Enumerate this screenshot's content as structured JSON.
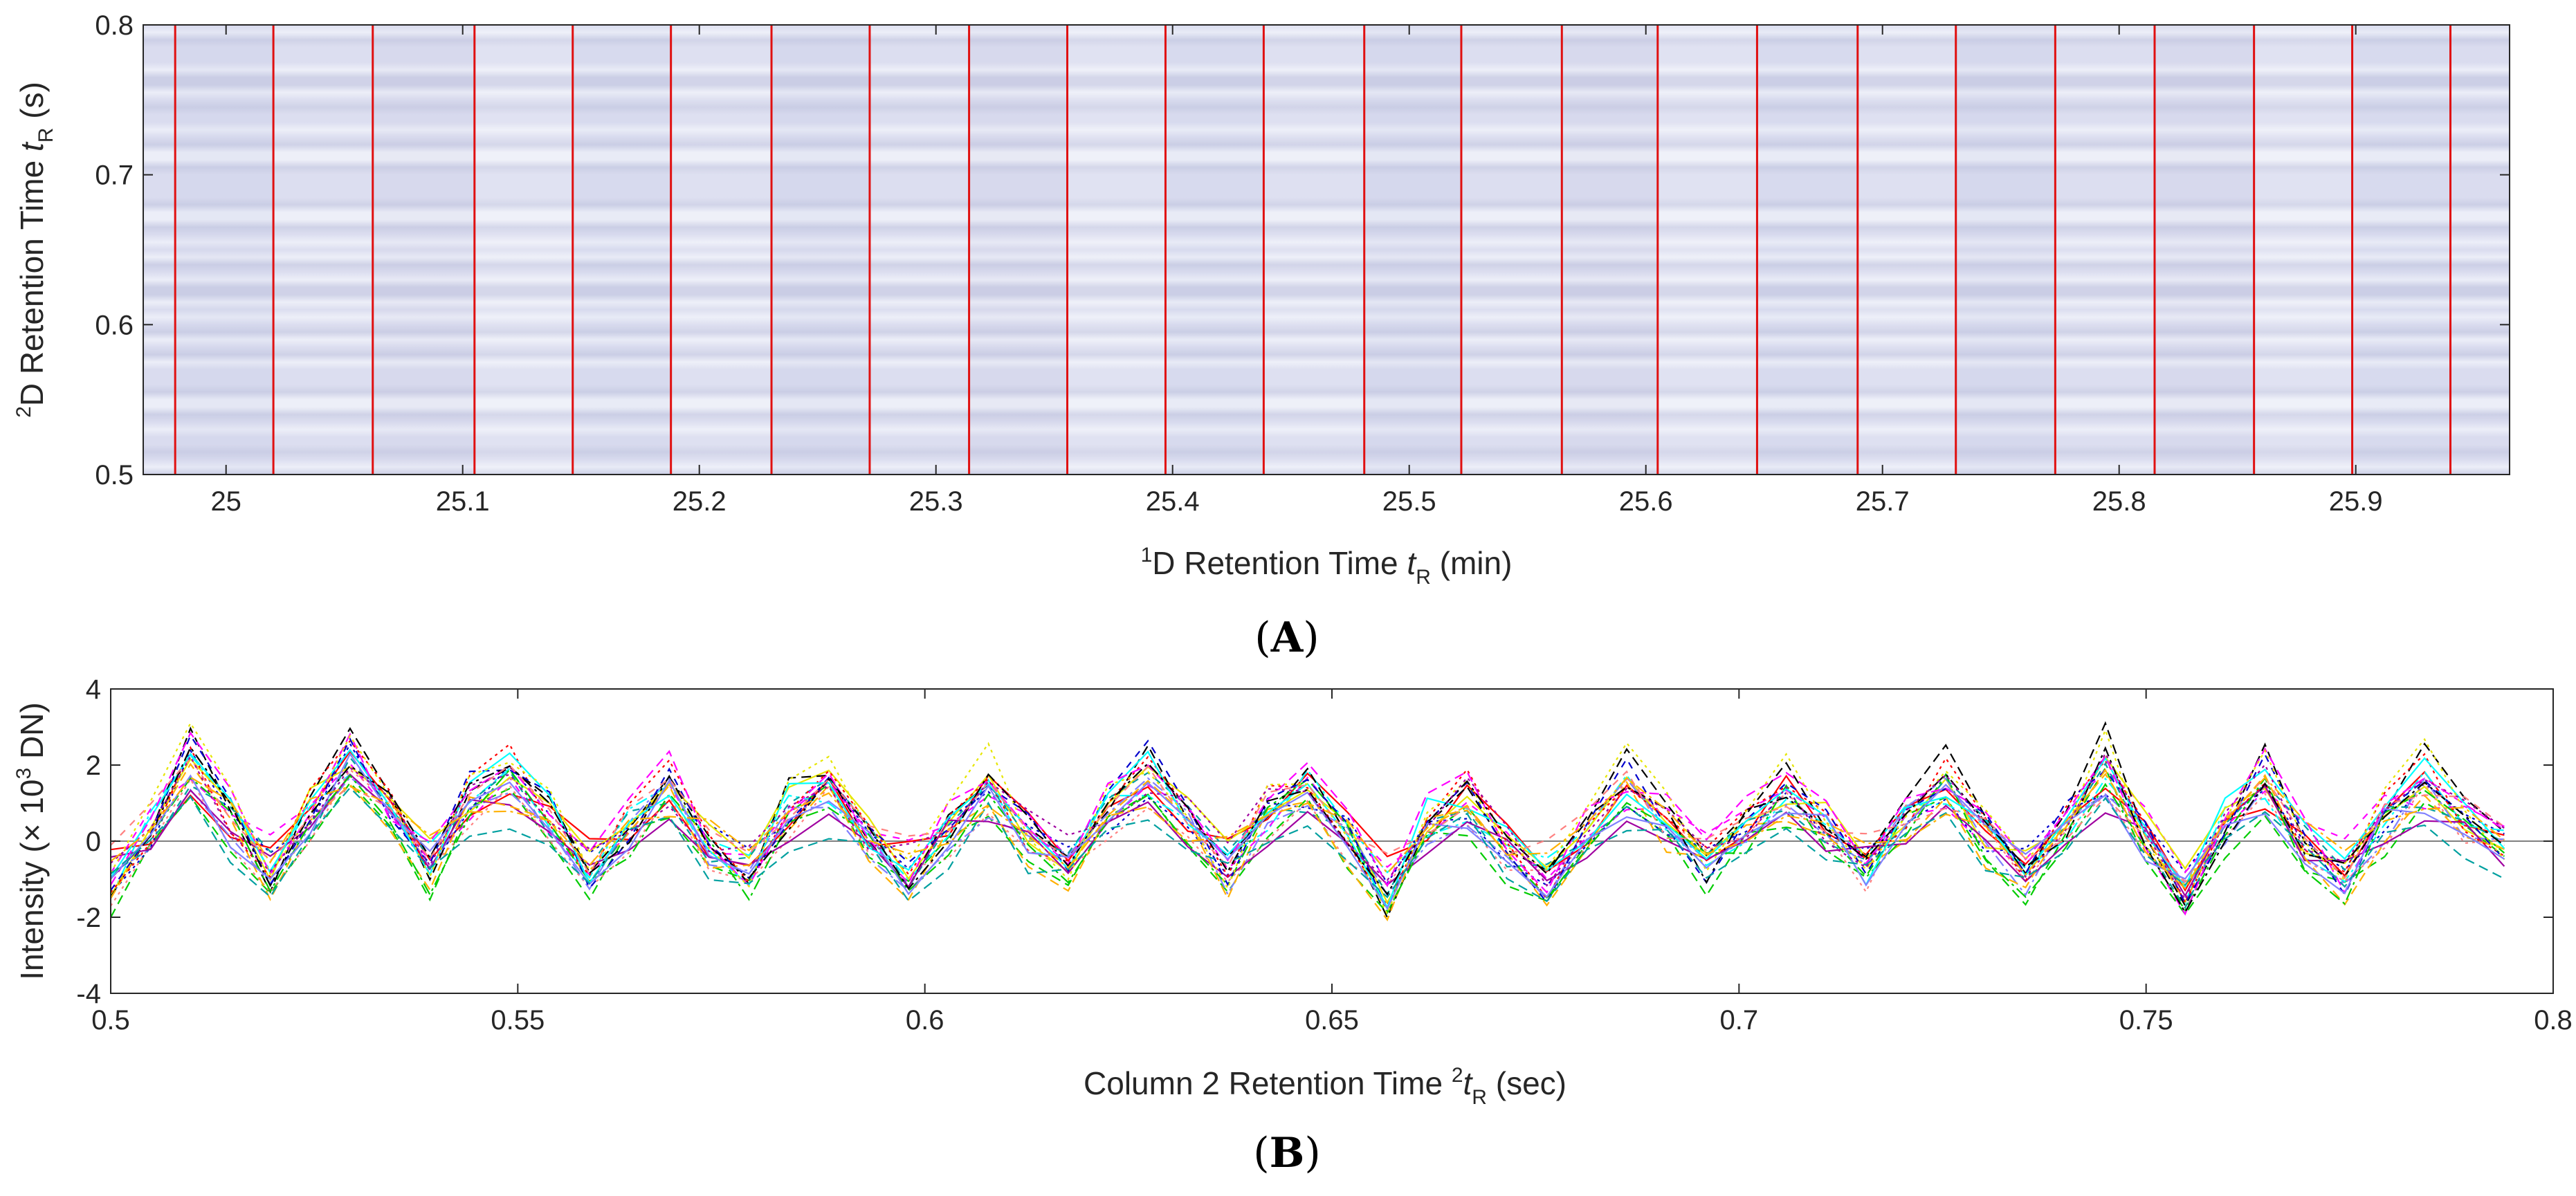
{
  "panel_labels": {
    "a_open": "(",
    "a": "A",
    "a_close": ")",
    "b_open": "(",
    "b": "B",
    "b_close": ")"
  },
  "colors": {
    "heatmap_bg": "#dadcef",
    "heatmap_band_light": "#eceef8",
    "heatmap_band_dark": "#cccfe6",
    "cut_line": "#e01010",
    "axis": "#262626",
    "trace_palette": [
      "#ff0000",
      "#00cc00",
      "#0000cc",
      "#00ffff",
      "#ff00ff",
      "#e6e600",
      "#000000",
      "#ff8080",
      "#8080ff",
      "#00a0a0",
      "#a000a0",
      "#ffb000"
    ]
  },
  "chart_data": [
    {
      "id": "A",
      "type": "heatmap",
      "title": "",
      "xlabel_parts": {
        "sup": "1",
        "main": "D Retention Time ",
        "var": "t",
        "sub": "R",
        "unit": " (min)"
      },
      "ylabel_parts": {
        "sup": "2",
        "main": "D Retention Time ",
        "var": "t",
        "sub": "R",
        "unit": " (s)"
      },
      "xlim": [
        24.965,
        25.965
      ],
      "ylim": [
        0.5,
        0.8
      ],
      "xticks": [
        25,
        25.1,
        25.2,
        25.3,
        25.4,
        25.5,
        25.6,
        25.7,
        25.8,
        25.9
      ],
      "xtick_labels": [
        "25",
        "25.1",
        "25.2",
        "25.3",
        "25.4",
        "25.5",
        "25.6",
        "25.7",
        "25.8",
        "25.9"
      ],
      "yticks": [
        0.5,
        0.6,
        0.7,
        0.8
      ],
      "ytick_labels": [
        "0.5",
        "0.6",
        "0.7",
        "0.8"
      ],
      "modulation_cut_x": [
        24.9785,
        25.02,
        25.062,
        25.105,
        25.1465,
        25.188,
        25.2305,
        25.272,
        25.314,
        25.3555,
        25.397,
        25.4385,
        25.481,
        25.522,
        25.5645,
        25.605,
        25.647,
        25.6895,
        25.731,
        25.773,
        25.815,
        25.857,
        25.8985,
        25.94
      ]
    },
    {
      "id": "B",
      "type": "line",
      "title": "",
      "xlabel_parts": {
        "main": "Column 2 Retention Time ",
        "sup": "2",
        "var": "t",
        "sub": "R",
        "unit": " (sec)"
      },
      "ylabel_parts": {
        "main": "Intensity (× 10",
        "sup": "3",
        "unit": " DN)"
      },
      "xlim": [
        0.5,
        0.8
      ],
      "ylim": [
        -4,
        4
      ],
      "xticks": [
        0.5,
        0.55,
        0.6,
        0.65,
        0.7,
        0.75,
        0.8
      ],
      "xtick_labels": [
        "0.5",
        "0.55",
        "0.6",
        "0.65",
        "0.7",
        "0.75",
        "0.8"
      ],
      "yticks": [
        -4,
        -2,
        0,
        2,
        4
      ],
      "ytick_labels": [
        "-4",
        "-2",
        "0",
        "2",
        "4"
      ],
      "zero_line": true,
      "sample_interval": 0.0049,
      "common_pattern": [
        -1.2,
        0.2,
        1.8,
        0.4,
        -0.9,
        0.6,
        2.0,
        0.6,
        -0.7,
        0.9,
        1.5,
        0.4,
        -0.9,
        0.2,
        1.2,
        -0.2,
        -0.8,
        0.6,
        1.2,
        -0.1,
        -0.9,
        0.2,
        1.2,
        0.0,
        -0.7,
        0.6,
        1.4,
        0.4,
        -0.8,
        0.6,
        1.2,
        0.0,
        -1.4,
        0.3,
        0.9,
        -0.3,
        -1.1,
        0.1,
        1.2,
        0.3,
        -0.6,
        0.3,
        1.1,
        0.2,
        -0.8,
        0.5,
        1.2,
        0.0,
        -0.9,
        0.2,
        1.6,
        0.0,
        -1.4,
        0.3,
        1.3,
        -0.2,
        -1.0,
        0.4,
        1.3,
        0.4,
        -0.3
      ],
      "num_series": 24
    }
  ]
}
